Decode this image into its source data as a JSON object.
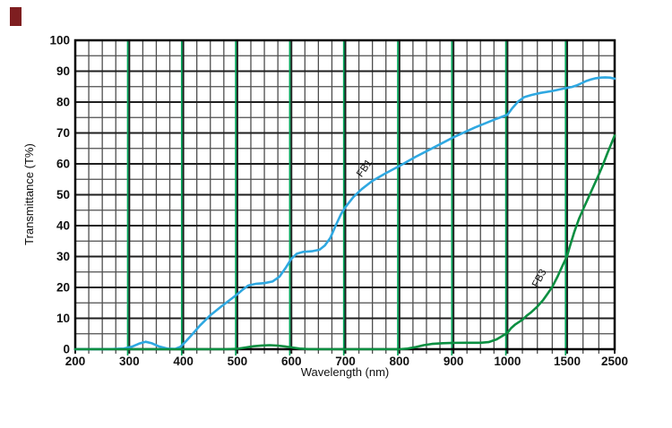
{
  "page": {
    "background": "#ffffff"
  },
  "corner_mark": {
    "color": "#7E1E20"
  },
  "chart_data": {
    "type": "line",
    "title": "",
    "xlabel": "Wavelength (nm)",
    "ylabel": "Transmittance (T%)",
    "grid": {
      "on": true,
      "minor_color": "#4e4e4e",
      "major_color": "#1f1f1f",
      "border_color": "#000000"
    },
    "x_axis": {
      "ticks": [
        200,
        300,
        400,
        500,
        600,
        700,
        800,
        900,
        1000,
        1500,
        2500
      ],
      "tick_pos": [
        0,
        0.1002,
        0.2003,
        0.3005,
        0.4007,
        0.5008,
        0.601,
        0.7012,
        0.8013,
        0.912,
        1.0
      ],
      "minor_divisions": [
        4,
        4,
        4,
        4,
        4,
        4,
        4,
        4,
        4,
        3
      ],
      "scale_note": "piecewise linear, compressed above 1000 nm",
      "highlighted_ticks": [
        300,
        400,
        500,
        600,
        700,
        800,
        900,
        1000,
        1500
      ],
      "highlight_color": "#00A659"
    },
    "y_axis": {
      "min": 0,
      "max": 100,
      "major_step": 10,
      "minor_step": 5
    },
    "legend_position": "inline-labels",
    "series": [
      {
        "name": "FB1",
        "color": "#2FA8E1",
        "label": {
          "text": "FB1",
          "x": 740,
          "y": 58,
          "rotation": -55
        },
        "points": [
          [
            200,
            0
          ],
          [
            260,
            0
          ],
          [
            290,
            0.2
          ],
          [
            305,
            0.8
          ],
          [
            318,
            1.8
          ],
          [
            330,
            2.4
          ],
          [
            342,
            1.9
          ],
          [
            355,
            0.9
          ],
          [
            370,
            0.2
          ],
          [
            385,
            0.1
          ],
          [
            395,
            0.8
          ],
          [
            405,
            2.6
          ],
          [
            415,
            4.5
          ],
          [
            430,
            7.5
          ],
          [
            450,
            11
          ],
          [
            470,
            13.8
          ],
          [
            485,
            15.8
          ],
          [
            500,
            17.8
          ],
          [
            510,
            19.3
          ],
          [
            520,
            20.6
          ],
          [
            535,
            21.2
          ],
          [
            550,
            21.4
          ],
          [
            565,
            21.9
          ],
          [
            578,
            23.5
          ],
          [
            590,
            26.5
          ],
          [
            600,
            29.3
          ],
          [
            610,
            30.9
          ],
          [
            622,
            31.5
          ],
          [
            638,
            31.7
          ],
          [
            652,
            32.2
          ],
          [
            662,
            33.6
          ],
          [
            672,
            36
          ],
          [
            682,
            40
          ],
          [
            692,
            43.8
          ],
          [
            700,
            46
          ],
          [
            715,
            49.3
          ],
          [
            730,
            51.8
          ],
          [
            750,
            54.5
          ],
          [
            775,
            57
          ],
          [
            800,
            59.3
          ],
          [
            830,
            62.3
          ],
          [
            860,
            65
          ],
          [
            900,
            68.6
          ],
          [
            940,
            71.8
          ],
          [
            980,
            74.6
          ],
          [
            1000,
            75.9
          ],
          [
            1040,
            78
          ],
          [
            1090,
            80.2
          ],
          [
            1140,
            81.6
          ],
          [
            1200,
            82.3
          ],
          [
            1280,
            83
          ],
          [
            1375,
            83.6
          ],
          [
            1450,
            84.2
          ],
          [
            1500,
            84.6
          ],
          [
            1600,
            84.9
          ],
          [
            1700,
            85.4
          ],
          [
            1800,
            86.1
          ],
          [
            1900,
            86.8
          ],
          [
            2000,
            87.3
          ],
          [
            2100,
            87.7
          ],
          [
            2200,
            87.9
          ],
          [
            2300,
            88
          ],
          [
            2400,
            87.9
          ],
          [
            2500,
            87.6
          ]
        ]
      },
      {
        "name": "FB3",
        "color": "#0B8F41",
        "label": {
          "text": "FB3",
          "x": 1290,
          "y": 22.5,
          "rotation": -62
        },
        "points": [
          [
            200,
            0
          ],
          [
            480,
            0
          ],
          [
            500,
            0.15
          ],
          [
            515,
            0.55
          ],
          [
            530,
            0.95
          ],
          [
            545,
            1.2
          ],
          [
            560,
            1.3
          ],
          [
            575,
            1.15
          ],
          [
            590,
            0.85
          ],
          [
            605,
            0.45
          ],
          [
            615,
            0.2
          ],
          [
            630,
            0.05
          ],
          [
            650,
            0
          ],
          [
            800,
            0
          ],
          [
            815,
            0.2
          ],
          [
            830,
            0.7
          ],
          [
            845,
            1.3
          ],
          [
            860,
            1.7
          ],
          [
            880,
            1.95
          ],
          [
            900,
            2.05
          ],
          [
            925,
            2.1
          ],
          [
            950,
            2.1
          ],
          [
            965,
            2.3
          ],
          [
            980,
            3.2
          ],
          [
            1000,
            5.3
          ],
          [
            1030,
            6.8
          ],
          [
            1065,
            8
          ],
          [
            1100,
            8.9
          ],
          [
            1125,
            9.5
          ],
          [
            1160,
            10.8
          ],
          [
            1200,
            12
          ],
          [
            1250,
            13.8
          ],
          [
            1300,
            16
          ],
          [
            1340,
            18.2
          ],
          [
            1375,
            20.2
          ],
          [
            1420,
            23.6
          ],
          [
            1460,
            27
          ],
          [
            1500,
            30.2
          ],
          [
            1550,
            33
          ],
          [
            1650,
            38
          ],
          [
            1750,
            42.3
          ],
          [
            1850,
            45.8
          ],
          [
            1950,
            49.2
          ],
          [
            2050,
            52.6
          ],
          [
            2150,
            56
          ],
          [
            2250,
            59.6
          ],
          [
            2350,
            63.6
          ],
          [
            2450,
            67.3
          ],
          [
            2500,
            69.2
          ]
        ]
      }
    ]
  }
}
